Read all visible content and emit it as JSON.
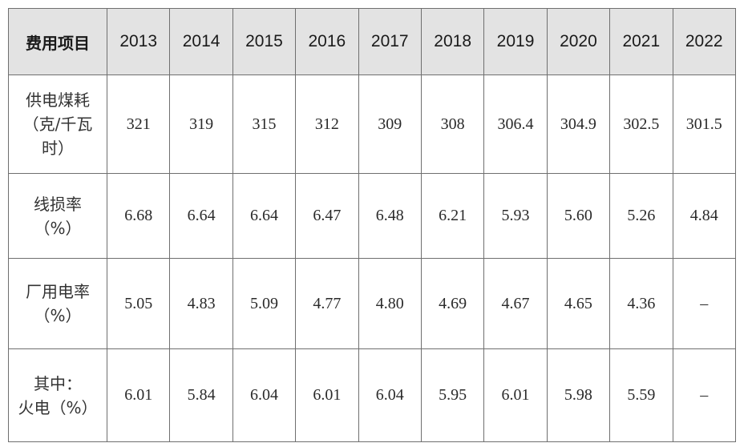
{
  "table": {
    "header_label": "费用项目",
    "years": [
      "2013",
      "2014",
      "2015",
      "2016",
      "2017",
      "2018",
      "2019",
      "2020",
      "2021",
      "2022"
    ],
    "rows": [
      {
        "label_lines": [
          "供电煤耗",
          "（克/千瓦",
          "时）"
        ],
        "values": [
          "321",
          "319",
          "315",
          "312",
          "309",
          "308",
          "306.4",
          "304.9",
          "302.5",
          "301.5"
        ]
      },
      {
        "label_lines": [
          "线损率",
          "（%）"
        ],
        "values": [
          "6.68",
          "6.64",
          "6.64",
          "6.47",
          "6.48",
          "6.21",
          "5.93",
          "5.60",
          "5.26",
          "4.84"
        ]
      },
      {
        "label_lines": [
          "厂用电率",
          "（%）"
        ],
        "values": [
          "5.05",
          "4.83",
          "5.09",
          "4.77",
          "4.80",
          "4.69",
          "4.67",
          "4.65",
          "4.36",
          "–"
        ]
      },
      {
        "label_lines": [
          "其中：",
          "火电（%）"
        ],
        "values": [
          "6.01",
          "5.84",
          "6.04",
          "6.01",
          "6.04",
          "5.95",
          "6.01",
          "5.98",
          "5.59",
          "–"
        ]
      }
    ]
  }
}
